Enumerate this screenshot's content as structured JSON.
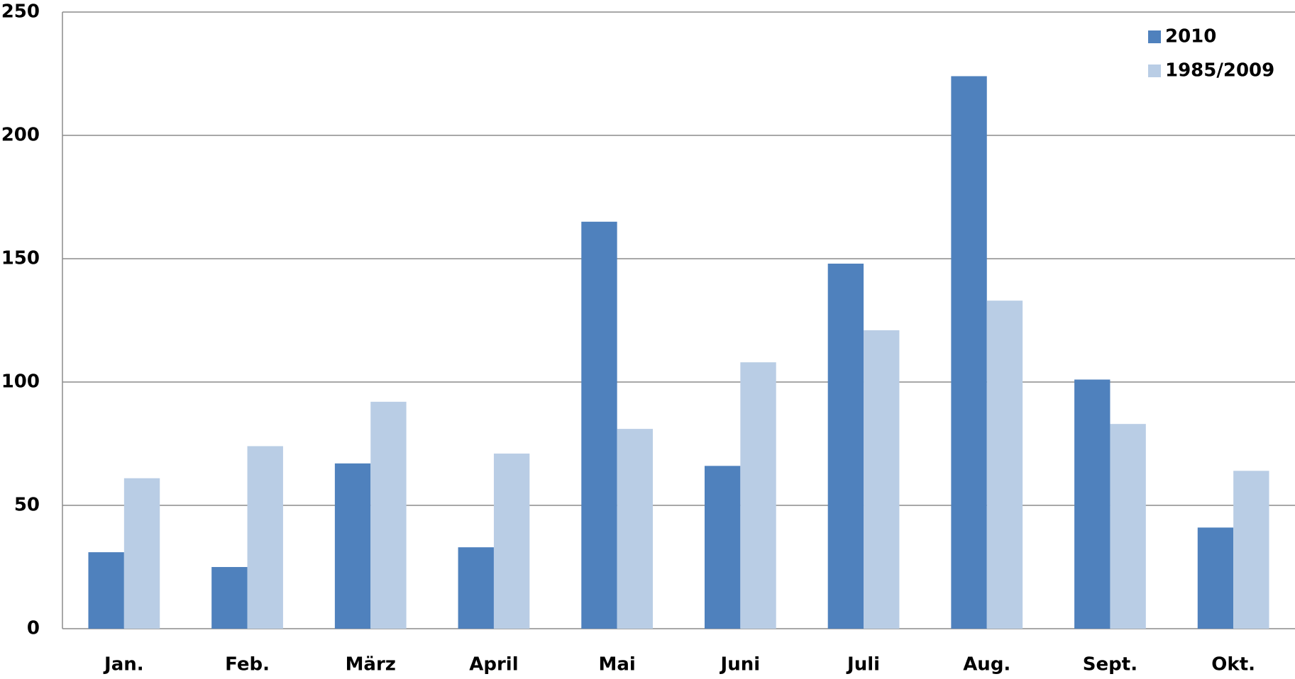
{
  "chart_data": {
    "type": "bar",
    "categories": [
      "Jan.",
      "Feb.",
      "März",
      "April",
      "Mai",
      "Juni",
      "Juli",
      "Aug.",
      "Sept.",
      "Okt."
    ],
    "series": [
      {
        "name": "2010",
        "color": "#4f81bd",
        "values": [
          31,
          25,
          67,
          33,
          165,
          66,
          148,
          224,
          101,
          41
        ]
      },
      {
        "name": "1985/2009",
        "color": "#b9cde5",
        "values": [
          61,
          74,
          92,
          71,
          81,
          108,
          121,
          133,
          83,
          64
        ]
      }
    ],
    "ylim": [
      0,
      250
    ],
    "yticks": [
      0,
      50,
      100,
      150,
      200,
      250
    ],
    "grid": true,
    "legend": "upper right"
  }
}
